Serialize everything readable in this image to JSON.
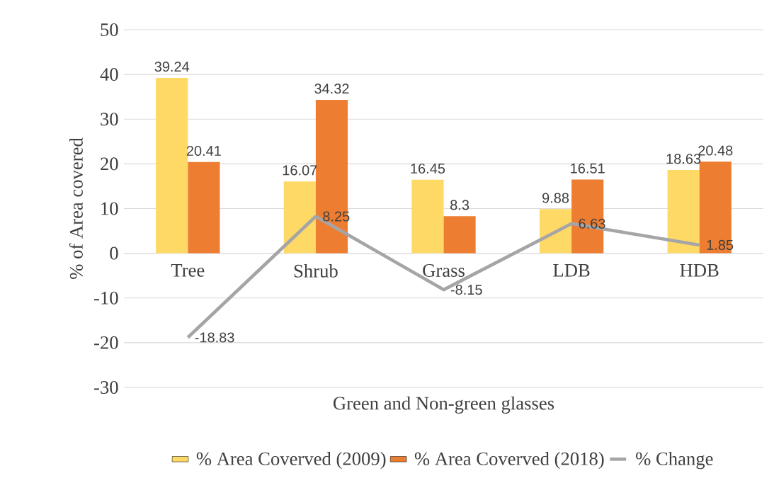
{
  "chart_data": {
    "type": "bar",
    "xlabel": "Green and Non-green glasses",
    "ylabel": "% of  Area covered",
    "categories": [
      "Tree",
      "Shrub",
      "Grass",
      "LDB",
      "HDB"
    ],
    "series": [
      {
        "name": "% Area Coverved (2009)",
        "color": "#ffd966",
        "values": [
          39.24,
          16.07,
          16.45,
          9.88,
          18.63
        ]
      },
      {
        "name": "% Area Coverved (2018)",
        "color": "#ed7d31",
        "values": [
          20.41,
          34.32,
          8.3,
          16.51,
          20.48
        ]
      },
      {
        "name": "% Change",
        "type": "line",
        "color": "#a5a5a5",
        "values": [
          -18.83,
          8.25,
          -8.15,
          6.63,
          1.85
        ]
      }
    ],
    "ylim": [
      -30,
      50
    ],
    "yticks": [
      -30,
      -20,
      -10,
      0,
      10,
      20,
      30,
      40,
      50
    ],
    "grid": "y",
    "legend": "bottom",
    "data_labels": true
  }
}
